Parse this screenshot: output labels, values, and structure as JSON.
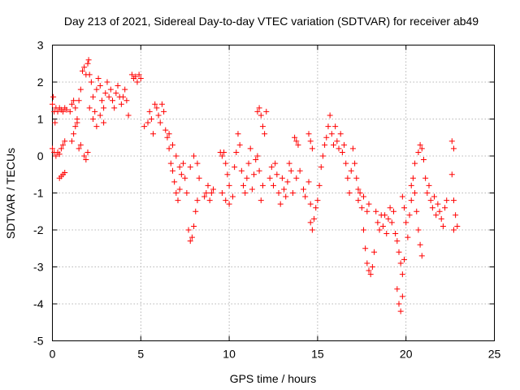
{
  "chart_data": {
    "type": "scatter",
    "title": "Day 213 of 2021, Sidereal Day-to-day VTEC variation (SDTVAR) for receiver ab49",
    "xlabel": "GPS time / hours",
    "ylabel": "SDTVAR / TECUs",
    "xlim": [
      0,
      25
    ],
    "ylim": [
      -5,
      3
    ],
    "x_ticks": [
      "0",
      "5",
      "10",
      "15",
      "20",
      "25"
    ],
    "y_ticks": [
      "-5",
      "-4",
      "-3",
      "-2",
      "-1",
      "0",
      "1",
      "2",
      "3"
    ],
    "grid": true,
    "marker": "plus",
    "series": [
      {
        "name": "SDTVAR ab49",
        "color": "#ff0000",
        "points": [
          [
            0.0,
            1.4
          ],
          [
            0.05,
            1.6
          ],
          [
            0.1,
            1.2
          ],
          [
            0.15,
            0.9
          ],
          [
            0.2,
            1.3
          ],
          [
            0.3,
            1.2
          ],
          [
            0.4,
            1.3
          ],
          [
            0.5,
            1.25
          ],
          [
            0.6,
            1.2
          ],
          [
            0.7,
            1.3
          ],
          [
            0.8,
            1.25
          ],
          [
            0.0,
            0.2
          ],
          [
            0.1,
            0.1
          ],
          [
            0.2,
            0.0
          ],
          [
            0.3,
            0.1
          ],
          [
            0.4,
            0.05
          ],
          [
            0.5,
            0.2
          ],
          [
            0.6,
            0.3
          ],
          [
            0.7,
            0.4
          ],
          [
            0.4,
            -0.6
          ],
          [
            0.5,
            -0.55
          ],
          [
            0.6,
            -0.5
          ],
          [
            0.7,
            -0.45
          ],
          [
            1.0,
            1.2
          ],
          [
            1.1,
            1.4
          ],
          [
            1.2,
            1.5
          ],
          [
            1.3,
            1.3
          ],
          [
            1.4,
            1.0
          ],
          [
            1.5,
            1.5
          ],
          [
            1.6,
            1.8
          ],
          [
            1.7,
            2.3
          ],
          [
            1.8,
            2.4
          ],
          [
            1.9,
            2.2
          ],
          [
            2.0,
            2.5
          ],
          [
            2.05,
            2.6
          ],
          [
            1.1,
            0.4
          ],
          [
            1.2,
            0.6
          ],
          [
            1.3,
            0.8
          ],
          [
            1.4,
            0.9
          ],
          [
            1.5,
            0.2
          ],
          [
            1.6,
            0.3
          ],
          [
            1.8,
            0.0
          ],
          [
            1.9,
            -0.1
          ],
          [
            2.0,
            0.1
          ],
          [
            2.1,
            2.2
          ],
          [
            2.2,
            2.0
          ],
          [
            2.3,
            1.6
          ],
          [
            2.4,
            1.2
          ],
          [
            2.5,
            1.8
          ],
          [
            2.6,
            2.1
          ],
          [
            2.7,
            1.9
          ],
          [
            2.8,
            1.5
          ],
          [
            2.9,
            1.3
          ],
          [
            3.0,
            1.7
          ],
          [
            3.1,
            2.0
          ],
          [
            2.1,
            1.3
          ],
          [
            2.3,
            1.0
          ],
          [
            2.5,
            0.8
          ],
          [
            2.7,
            1.1
          ],
          [
            2.9,
            0.9
          ],
          [
            3.2,
            1.6
          ],
          [
            3.3,
            1.8
          ],
          [
            3.4,
            1.5
          ],
          [
            3.5,
            1.3
          ],
          [
            3.6,
            1.7
          ],
          [
            3.7,
            1.9
          ],
          [
            3.8,
            1.6
          ],
          [
            3.9,
            1.4
          ],
          [
            4.0,
            1.6
          ],
          [
            4.1,
            1.8
          ],
          [
            4.2,
            1.5
          ],
          [
            4.3,
            1.1
          ],
          [
            4.5,
            2.2
          ],
          [
            4.6,
            2.1
          ],
          [
            4.7,
            2.15
          ],
          [
            4.8,
            2.0
          ],
          [
            4.9,
            2.2
          ],
          [
            5.0,
            2.1
          ],
          [
            5.2,
            0.8
          ],
          [
            5.4,
            0.9
          ],
          [
            5.5,
            1.2
          ],
          [
            5.6,
            1.0
          ],
          [
            5.7,
            0.6
          ],
          [
            5.8,
            1.4
          ],
          [
            5.9,
            1.3
          ],
          [
            6.0,
            1.1
          ],
          [
            6.1,
            0.9
          ],
          [
            6.2,
            1.4
          ],
          [
            6.3,
            1.2
          ],
          [
            6.4,
            0.7
          ],
          [
            6.5,
            0.5
          ],
          [
            6.6,
            0.2
          ],
          [
            6.7,
            -0.2
          ],
          [
            6.8,
            -0.4
          ],
          [
            6.9,
            -0.7
          ],
          [
            7.0,
            -1.0
          ],
          [
            7.1,
            -1.2
          ],
          [
            7.2,
            -0.9
          ],
          [
            6.6,
            0.6
          ],
          [
            6.8,
            0.3
          ],
          [
            7.0,
            0.0
          ],
          [
            7.2,
            -0.3
          ],
          [
            7.3,
            -0.5
          ],
          [
            7.4,
            -0.2
          ],
          [
            7.5,
            -0.6
          ],
          [
            7.6,
            -1.0
          ],
          [
            7.7,
            -2.0
          ],
          [
            7.8,
            -2.3
          ],
          [
            7.9,
            -2.2
          ],
          [
            8.0,
            -1.9
          ],
          [
            8.1,
            -1.5
          ],
          [
            8.2,
            -1.2
          ],
          [
            7.8,
            -0.3
          ],
          [
            8.0,
            0.0
          ],
          [
            8.2,
            -0.2
          ],
          [
            8.3,
            -0.6
          ],
          [
            8.6,
            -1.1
          ],
          [
            8.7,
            -1.0
          ],
          [
            8.8,
            -0.8
          ],
          [
            8.9,
            -1.2
          ],
          [
            9.0,
            -1.0
          ],
          [
            9.1,
            -0.9
          ],
          [
            9.5,
            0.1
          ],
          [
            9.6,
            0.0
          ],
          [
            9.7,
            0.1
          ],
          [
            9.8,
            -0.2
          ],
          [
            9.9,
            -0.5
          ],
          [
            10.0,
            -0.8
          ],
          [
            9.6,
            -1.0
          ],
          [
            9.8,
            -1.2
          ],
          [
            10.0,
            -1.3
          ],
          [
            10.2,
            -1.1
          ],
          [
            10.3,
            -0.3
          ],
          [
            10.4,
            0.1
          ],
          [
            10.5,
            0.6
          ],
          [
            10.6,
            0.3
          ],
          [
            10.7,
            -0.4
          ],
          [
            10.8,
            -0.8
          ],
          [
            10.9,
            -1.0
          ],
          [
            11.0,
            -0.6
          ],
          [
            11.1,
            -0.2
          ],
          [
            11.2,
            0.2
          ],
          [
            11.3,
            -0.9
          ],
          [
            11.4,
            -0.5
          ],
          [
            11.5,
            -0.1
          ],
          [
            11.6,
            0.0
          ],
          [
            11.7,
            -0.4
          ],
          [
            11.8,
            -1.2
          ],
          [
            11.9,
            -0.8
          ],
          [
            11.6,
            1.2
          ],
          [
            11.7,
            1.3
          ],
          [
            11.8,
            1.1
          ],
          [
            11.9,
            0.8
          ],
          [
            12.0,
            0.6
          ],
          [
            12.1,
            1.2
          ],
          [
            12.3,
            -0.6
          ],
          [
            12.4,
            -0.3
          ],
          [
            12.5,
            -0.8
          ],
          [
            12.6,
            -0.2
          ],
          [
            12.7,
            -0.5
          ],
          [
            12.8,
            -1.0
          ],
          [
            12.9,
            -1.3
          ],
          [
            13.0,
            -0.6
          ],
          [
            13.1,
            -0.9
          ],
          [
            13.2,
            -1.1
          ],
          [
            13.3,
            -0.7
          ],
          [
            13.4,
            -0.2
          ],
          [
            13.5,
            -0.4
          ],
          [
            13.7,
            0.5
          ],
          [
            13.8,
            0.4
          ],
          [
            13.9,
            0.3
          ],
          [
            13.6,
            -1.0
          ],
          [
            13.8,
            -0.6
          ],
          [
            14.0,
            -0.4
          ],
          [
            14.2,
            -0.9
          ],
          [
            14.3,
            -1.1
          ],
          [
            14.5,
            -0.7
          ],
          [
            14.6,
            -1.3
          ],
          [
            14.6,
            -1.8
          ],
          [
            14.7,
            -2.0
          ],
          [
            14.8,
            -1.7
          ],
          [
            14.9,
            -1.4
          ],
          [
            14.5,
            0.6
          ],
          [
            14.6,
            0.4
          ],
          [
            14.7,
            0.2
          ],
          [
            15.0,
            -1.2
          ],
          [
            15.1,
            -0.8
          ],
          [
            15.2,
            -0.3
          ],
          [
            15.3,
            0.0
          ],
          [
            15.4,
            0.3
          ],
          [
            15.5,
            0.5
          ],
          [
            15.6,
            0.8
          ],
          [
            15.7,
            1.1
          ],
          [
            15.8,
            0.6
          ],
          [
            15.9,
            0.3
          ],
          [
            16.0,
            0.8
          ],
          [
            16.1,
            0.4
          ],
          [
            16.2,
            0.2
          ],
          [
            16.3,
            0.6
          ],
          [
            16.4,
            0.1
          ],
          [
            16.5,
            0.3
          ],
          [
            16.6,
            -0.2
          ],
          [
            16.7,
            -0.6
          ],
          [
            16.8,
            -1.0
          ],
          [
            16.9,
            -0.4
          ],
          [
            17.0,
            0.2
          ],
          [
            17.1,
            -0.2
          ],
          [
            17.2,
            -0.6
          ],
          [
            17.3,
            -0.9
          ],
          [
            17.3,
            -1.2
          ],
          [
            17.4,
            -1.0
          ],
          [
            17.5,
            -1.4
          ],
          [
            17.6,
            -1.1
          ],
          [
            17.8,
            -1.5
          ],
          [
            17.9,
            -1.3
          ],
          [
            17.6,
            -2.0
          ],
          [
            17.7,
            -2.5
          ],
          [
            17.8,
            -2.9
          ],
          [
            17.9,
            -3.1
          ],
          [
            18.0,
            -3.2
          ],
          [
            18.1,
            -3.0
          ],
          [
            18.2,
            -2.6
          ],
          [
            18.3,
            -1.5
          ],
          [
            18.4,
            -1.8
          ],
          [
            18.5,
            -2.0
          ],
          [
            18.6,
            -1.6
          ],
          [
            18.7,
            -1.9
          ],
          [
            18.8,
            -1.6
          ],
          [
            18.9,
            -2.1
          ],
          [
            19.0,
            -1.7
          ],
          [
            19.1,
            -1.4
          ],
          [
            19.2,
            -1.8
          ],
          [
            19.3,
            -1.5
          ],
          [
            19.4,
            -2.1
          ],
          [
            19.5,
            -2.3
          ],
          [
            19.6,
            -2.6
          ],
          [
            19.7,
            -2.9
          ],
          [
            19.8,
            -3.2
          ],
          [
            19.9,
            -2.8
          ],
          [
            19.5,
            -3.6
          ],
          [
            19.6,
            -4.0
          ],
          [
            19.7,
            -4.2
          ],
          [
            19.8,
            -3.8
          ],
          [
            19.8,
            -1.1
          ],
          [
            19.9,
            -1.4
          ],
          [
            20.0,
            -1.8
          ],
          [
            20.1,
            -2.2
          ],
          [
            20.2,
            -1.6
          ],
          [
            20.3,
            -1.2
          ],
          [
            20.3,
            -0.8
          ],
          [
            20.4,
            -0.6
          ],
          [
            20.5,
            -1.0
          ],
          [
            20.6,
            -1.5
          ],
          [
            20.7,
            -2.0
          ],
          [
            20.8,
            -2.4
          ],
          [
            20.9,
            -2.7
          ],
          [
            20.5,
            -0.2
          ],
          [
            20.7,
            0.1
          ],
          [
            20.8,
            0.3
          ],
          [
            20.9,
            0.2
          ],
          [
            21.0,
            -0.1
          ],
          [
            21.1,
            -0.6
          ],
          [
            21.2,
            -1.0
          ],
          [
            21.3,
            -0.8
          ],
          [
            21.4,
            -1.2
          ],
          [
            21.5,
            -1.4
          ],
          [
            21.6,
            -1.1
          ],
          [
            21.7,
            -1.6
          ],
          [
            21.8,
            -1.3
          ],
          [
            21.9,
            -1.5
          ],
          [
            22.0,
            -1.7
          ],
          [
            22.1,
            -1.9
          ],
          [
            22.2,
            -1.4
          ],
          [
            22.3,
            -1.2
          ],
          [
            22.6,
            0.4
          ],
          [
            22.7,
            0.2
          ],
          [
            22.6,
            -0.5
          ],
          [
            22.7,
            -1.2
          ],
          [
            22.8,
            -1.6
          ],
          [
            22.9,
            -1.9
          ],
          [
            22.7,
            -2.0
          ]
        ]
      }
    ]
  }
}
